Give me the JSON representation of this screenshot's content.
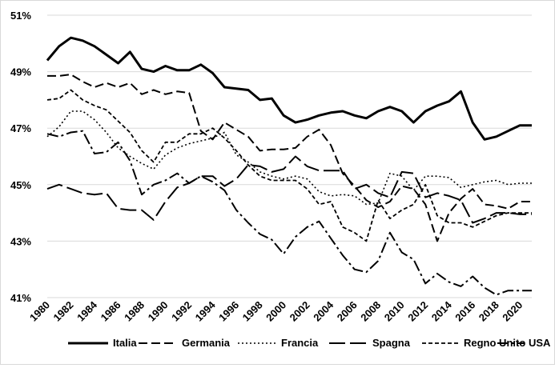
{
  "chart_data": {
    "type": "line",
    "title": "",
    "xlabel": "",
    "ylabel": "",
    "xlim": [
      1980,
      2021
    ],
    "ylim": [
      41,
      51
    ],
    "grid": true,
    "legend_position": "bottom",
    "x_tick_labels": [
      "1980",
      "1982",
      "1984",
      "1986",
      "1988",
      "1990",
      "1992",
      "1994",
      "1996",
      "1998",
      "2000",
      "2002",
      "2004",
      "2006",
      "2008",
      "2010",
      "2012",
      "2014",
      "2016",
      "2018",
      "2020"
    ],
    "y_tick_labels": [
      "41%",
      "43%",
      "45%",
      "47%",
      "49%",
      "51%"
    ],
    "x": [
      1980,
      1981,
      1982,
      1983,
      1984,
      1985,
      1986,
      1987,
      1988,
      1989,
      1990,
      1991,
      1992,
      1993,
      1994,
      1995,
      1996,
      1997,
      1998,
      1999,
      2000,
      2001,
      2002,
      2003,
      2004,
      2005,
      2006,
      2007,
      2008,
      2009,
      2010,
      2011,
      2012,
      2013,
      2014,
      2015,
      2016,
      2017,
      2018,
      2019,
      2020,
      2021
    ],
    "series": [
      {
        "name": "Italia",
        "style": "solid",
        "width": 3,
        "values": [
          49.4,
          49.9,
          50.2,
          50.1,
          49.9,
          49.6,
          49.3,
          49.7,
          49.1,
          49.0,
          49.2,
          49.05,
          49.05,
          49.25,
          48.95,
          48.45,
          48.4,
          48.35,
          48.0,
          48.05,
          47.45,
          47.2,
          47.3,
          47.45,
          47.55,
          47.6,
          47.45,
          47.35,
          47.6,
          47.75,
          47.6,
          47.2,
          47.6,
          47.8,
          47.95,
          48.3,
          47.2,
          46.6,
          46.7,
          46.9,
          47.1,
          47.1
        ]
      },
      {
        "name": "Germania",
        "style": "dash",
        "width": 2,
        "values": [
          48.85,
          48.85,
          48.9,
          48.65,
          48.45,
          48.6,
          48.45,
          48.6,
          48.2,
          48.35,
          48.2,
          48.3,
          48.25,
          46.9,
          46.6,
          47.2,
          46.95,
          46.7,
          46.2,
          46.25,
          46.25,
          46.3,
          46.7,
          46.95,
          46.4,
          45.4,
          44.95,
          44.45,
          44.2,
          44.4,
          44.95,
          44.85,
          44.3,
          43.0,
          44.0,
          44.5,
          44.85,
          44.3,
          44.25,
          44.15,
          44.4,
          44.4
        ]
      },
      {
        "name": "Francia",
        "style": "dot",
        "width": 1.6,
        "values": [
          46.7,
          47.05,
          47.6,
          47.6,
          47.3,
          46.85,
          46.3,
          46.0,
          45.75,
          45.55,
          46.05,
          46.3,
          46.45,
          46.55,
          46.65,
          46.85,
          46.05,
          45.8,
          45.45,
          45.3,
          45.2,
          45.3,
          45.2,
          44.75,
          44.6,
          44.65,
          44.6,
          44.3,
          44.35,
          45.4,
          45.3,
          44.8,
          45.3,
          45.3,
          45.25,
          44.9,
          45.0,
          45.1,
          45.15,
          45.0,
          45.05,
          45.05
        ]
      },
      {
        "name": "Spagna",
        "style": "longdash",
        "width": 2,
        "values": [
          44.85,
          45.0,
          44.85,
          44.7,
          44.65,
          44.7,
          44.15,
          44.1,
          44.1,
          43.75,
          44.4,
          44.9,
          45.05,
          45.3,
          45.3,
          44.95,
          45.2,
          45.7,
          45.65,
          45.45,
          45.55,
          46.0,
          45.65,
          45.5,
          45.5,
          45.5,
          44.85,
          45.0,
          44.7,
          44.55,
          45.45,
          45.4,
          44.55,
          44.7,
          44.6,
          44.45,
          43.65,
          43.8,
          44.0,
          44.0,
          43.95,
          43.95
        ]
      },
      {
        "name": "Regno Unito",
        "style": "smalldash",
        "width": 1.8,
        "values": [
          48.0,
          48.05,
          48.35,
          48.0,
          47.8,
          47.65,
          47.25,
          46.85,
          46.2,
          45.8,
          46.5,
          46.5,
          46.8,
          46.8,
          47.0,
          46.65,
          46.2,
          45.7,
          45.3,
          45.15,
          45.15,
          45.15,
          44.85,
          44.3,
          44.4,
          43.5,
          43.3,
          43.0,
          44.45,
          43.8,
          44.1,
          44.3,
          45.0,
          43.9,
          43.65,
          43.65,
          43.5,
          43.7,
          43.9,
          44.0,
          44.0,
          44.0
        ]
      },
      {
        "name": "USA",
        "style": "dashdot",
        "width": 2,
        "values": [
          46.8,
          46.7,
          46.85,
          46.9,
          46.1,
          46.15,
          46.5,
          45.85,
          44.65,
          45.0,
          45.15,
          45.4,
          45.05,
          45.3,
          45.1,
          44.8,
          44.1,
          43.65,
          43.25,
          43.05,
          42.55,
          43.15,
          43.5,
          43.7,
          43.1,
          42.5,
          42.0,
          41.9,
          42.3,
          43.3,
          42.6,
          42.35,
          41.5,
          41.85,
          41.55,
          41.4,
          41.75,
          41.35,
          41.1,
          41.25,
          41.25,
          41.25
        ]
      }
    ]
  }
}
